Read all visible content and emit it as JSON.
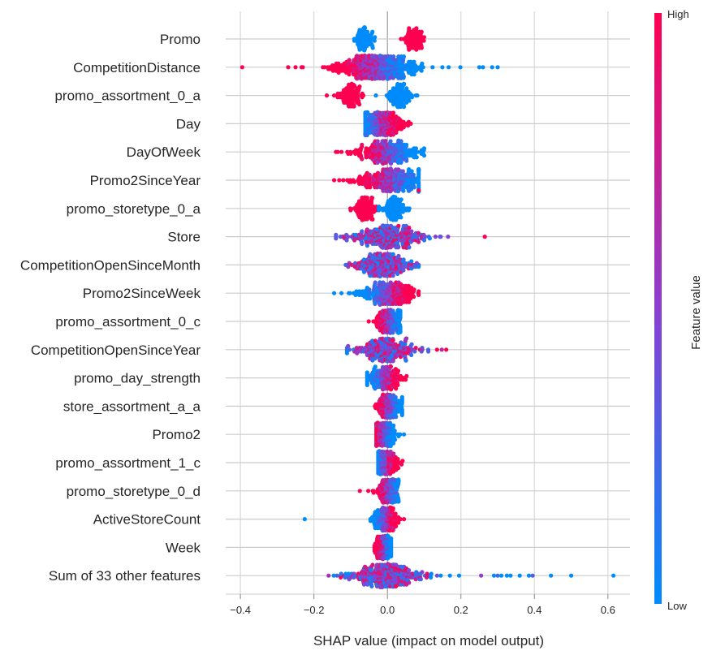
{
  "chart_data": {
    "type": "scatter",
    "subtype": "shap-beeswarm",
    "xlabel": "SHAP value (impact on model output)",
    "xlim": [
      -0.44,
      0.66
    ],
    "xticks": [
      -0.4,
      -0.2,
      0,
      0.2,
      0.4,
      0.6
    ],
    "xtick_labels": [
      "−0.4",
      "−0.2",
      "0.0",
      "0.2",
      "0.4",
      "0.6"
    ],
    "grid": true,
    "colorbar": {
      "title": "Feature value",
      "high_label": "High",
      "low_label": "Low",
      "high_color": "#ff0051",
      "mid_color": "#8a3fd1",
      "low_color": "#008bfb"
    },
    "features": [
      {
        "name": "Promo",
        "min": -0.09,
        "max": 0.135,
        "peak": -0.06,
        "spread": 0.025,
        "count": 150,
        "high_side": "right",
        "lo_center": -0.06,
        "hi_center": 0.07,
        "outliers": []
      },
      {
        "name": "CompetitionDistance",
        "min": -0.395,
        "max": 0.3,
        "peak": -0.03,
        "spread": 0.06,
        "count": 420,
        "high_side": "left",
        "outliers": [
          [
            -0.395,
            1
          ],
          [
            0.3,
            0
          ],
          [
            0.285,
            0
          ],
          [
            0.26,
            0
          ],
          [
            0.25,
            0
          ],
          [
            -0.27,
            1
          ],
          [
            -0.25,
            1
          ]
        ]
      },
      {
        "name": "promo_assortment_0_a",
        "min": -0.165,
        "max": 0.085,
        "peak": 0.03,
        "spread": 0.03,
        "count": 220,
        "high_side": "left",
        "lo_center": 0.035,
        "hi_center": -0.1,
        "outliers": [
          [
            -0.165,
            1
          ],
          [
            -0.145,
            1
          ]
        ]
      },
      {
        "name": "Day",
        "min": -0.06,
        "max": 0.12,
        "peak": -0.02,
        "spread": 0.035,
        "count": 240,
        "high_side": "right",
        "outliers": []
      },
      {
        "name": "DayOfWeek",
        "min": -0.14,
        "max": 0.1,
        "peak": 0.0,
        "spread": 0.045,
        "count": 240,
        "high_side": "left",
        "outliers": [
          [
            -0.14,
            1
          ],
          [
            -0.125,
            1
          ]
        ]
      },
      {
        "name": "Promo2SinceYear",
        "min": -0.145,
        "max": 0.085,
        "peak": 0.01,
        "spread": 0.05,
        "count": 260,
        "high_side": "left",
        "outliers": [
          [
            0.085,
            1
          ]
        ]
      },
      {
        "name": "promo_storetype_0_a",
        "min": -0.115,
        "max": 0.065,
        "peak": 0.01,
        "spread": 0.03,
        "count": 200,
        "high_side": "left",
        "lo_center": 0.015,
        "hi_center": -0.06,
        "outliers": []
      },
      {
        "name": "Store",
        "min": -0.14,
        "max": 0.265,
        "peak": 0.0,
        "spread": 0.05,
        "count": 260,
        "high_side": "mixed",
        "outliers": [
          [
            0.265,
            1
          ],
          [
            0.165,
            0.5
          ],
          [
            0.145,
            0.4
          ],
          [
            -0.14,
            0.3
          ]
        ]
      },
      {
        "name": "CompetitionOpenSinceMonth",
        "min": -0.115,
        "max": 0.085,
        "peak": -0.01,
        "spread": 0.04,
        "count": 240,
        "high_side": "mixed",
        "outliers": []
      },
      {
        "name": "Promo2SinceWeek",
        "min": -0.145,
        "max": 0.085,
        "peak": 0.0,
        "spread": 0.04,
        "count": 220,
        "high_side": "right",
        "outliers": [
          [
            -0.145,
            0
          ],
          [
            -0.125,
            0
          ],
          [
            -0.105,
            0
          ]
        ]
      },
      {
        "name": "promo_assortment_0_c",
        "min": -0.065,
        "max": 0.035,
        "peak": 0.005,
        "spread": 0.02,
        "count": 160,
        "high_side": "left",
        "outliers": []
      },
      {
        "name": "CompetitionOpenSinceYear",
        "min": -0.11,
        "max": 0.16,
        "peak": -0.005,
        "spread": 0.04,
        "count": 240,
        "high_side": "mixed",
        "outliers": [
          [
            0.16,
            1
          ],
          [
            0.135,
            1
          ],
          [
            -0.11,
            0
          ]
        ]
      },
      {
        "name": "promo_day_strength",
        "min": -0.055,
        "max": 0.055,
        "peak": -0.01,
        "spread": 0.025,
        "count": 160,
        "high_side": "right",
        "outliers": []
      },
      {
        "name": "store_assortment_a_a",
        "min": -0.055,
        "max": 0.04,
        "peak": 0.005,
        "spread": 0.02,
        "count": 150,
        "high_side": "left",
        "outliers": []
      },
      {
        "name": "Promo2",
        "min": -0.03,
        "max": 0.045,
        "peak": -0.01,
        "spread": 0.018,
        "count": 150,
        "high_side": "left",
        "outliers": []
      },
      {
        "name": "promo_assortment_1_c",
        "min": -0.025,
        "max": 0.065,
        "peak": -0.005,
        "spread": 0.018,
        "count": 150,
        "high_side": "right",
        "outliers": []
      },
      {
        "name": "promo_storetype_0_d",
        "min": -0.075,
        "max": 0.03,
        "peak": 0.005,
        "spread": 0.02,
        "count": 150,
        "high_side": "left",
        "outliers": [
          [
            -0.075,
            1
          ]
        ]
      },
      {
        "name": "ActiveStoreCount",
        "min": -0.225,
        "max": 0.045,
        "peak": -0.005,
        "spread": 0.018,
        "count": 150,
        "high_side": "right",
        "outliers": [
          [
            -0.225,
            0
          ]
        ]
      },
      {
        "name": "Week",
        "min": -0.035,
        "max": 0.01,
        "peak": -0.01,
        "spread": 0.012,
        "count": 120,
        "high_side": "left",
        "outliers": []
      },
      {
        "name": "Sum of 33 other features",
        "min": -0.16,
        "max": 0.615,
        "peak": -0.01,
        "spread": 0.05,
        "count": 300,
        "high_side": "mixed",
        "outliers": [
          [
            0.615,
            0
          ],
          [
            0.5,
            0
          ],
          [
            0.445,
            0
          ],
          [
            0.395,
            0.3
          ],
          [
            0.385,
            0
          ],
          [
            0.36,
            0
          ],
          [
            0.335,
            0
          ],
          [
            0.325,
            0
          ],
          [
            0.31,
            0
          ],
          [
            0.3,
            0.2
          ],
          [
            0.29,
            0
          ],
          [
            0.255,
            0.5
          ],
          [
            0.195,
            0
          ],
          [
            0.17,
            0
          ],
          [
            0.145,
            0
          ],
          [
            0.135,
            0.4
          ],
          [
            0.115,
            1
          ],
          [
            -0.16,
            0.6
          ]
        ]
      }
    ]
  }
}
